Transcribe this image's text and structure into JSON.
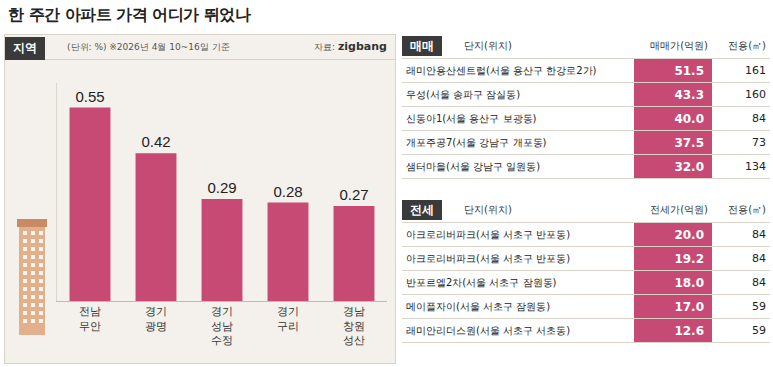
{
  "title": "한 주간 아파트 가격 어디가 뛰었나",
  "chart_panel": {
    "header": "지역",
    "unit_note": "(단위: %)",
    "date_note": "※2026년 4월 10~16일 기준",
    "source": "자료:",
    "source_logo": "zigbang"
  },
  "chart_data": {
    "type": "bar",
    "categories": [
      "전남\n무안",
      "경기\n광명",
      "경기\n성남\n수정",
      "경기\n구리",
      "경남\n창원\n성산"
    ],
    "values": [
      0.55,
      0.42,
      0.29,
      0.28,
      0.27
    ],
    "color": "#c64a73",
    "ylim": [
      0,
      0.62
    ],
    "data_labels": true,
    "tick_labels": "x",
    "grid": false
  },
  "tables": [
    {
      "tag": "매매",
      "columns": [
        "단지(위치)",
        "매매가(억원)",
        "전용(㎡)"
      ],
      "rows": [
        [
          "래미안용산센트럴(서울 용산구 한강로2가)",
          "51.5",
          "161"
        ],
        [
          "우성(서울 송파구 잠실동)",
          "43.3",
          "160"
        ],
        [
          "신동아1(서울 용산구 보광동)",
          "40.0",
          "84"
        ],
        [
          "개포주공7(서울 강남구 개포동)",
          "37.5",
          "73"
        ],
        [
          "샘터마을(서울 강남구 일원동)",
          "32.0",
          "134"
        ]
      ]
    },
    {
      "tag": "전세",
      "columns": [
        "단지(위치)",
        "전세가(억원)",
        "전용(㎡)"
      ],
      "rows": [
        [
          "아크로리버파크(서울 서초구 반포동)",
          "20.0",
          "84"
        ],
        [
          "아크로리버파크(서울 서초구 반포동)",
          "19.2",
          "84"
        ],
        [
          "반포르엘2차(서울 서초구 잠원동)",
          "18.0",
          "84"
        ],
        [
          "메이플자이(서울 서초구 잠원동)",
          "17.0",
          "59"
        ],
        [
          "래미안리더스원(서울 서초구 서초동)",
          "12.6",
          "59"
        ]
      ]
    }
  ]
}
